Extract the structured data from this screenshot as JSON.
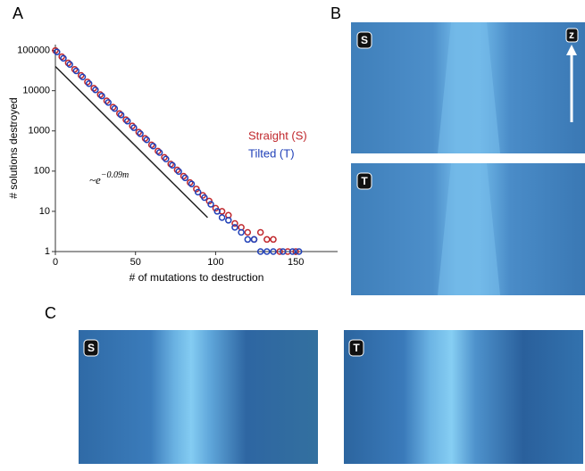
{
  "chart_data": {
    "type": "scatter",
    "xlabel": "# of mutations to destruction",
    "ylabel": "# solutions destroyed",
    "log_y": true,
    "xlim": [
      0,
      175
    ],
    "ylim": [
      1,
      140000
    ],
    "xticks": [
      0,
      50,
      100,
      150
    ],
    "yticks": [
      1,
      10,
      100,
      1000,
      10000,
      100000
    ],
    "series": [
      {
        "name": "Straight (S)",
        "color": "#c0282d",
        "x": [
          0,
          4,
          8,
          12,
          16,
          20,
          24,
          28,
          32,
          36,
          40,
          44,
          48,
          52,
          56,
          60,
          64,
          68,
          72,
          76,
          80,
          84,
          88,
          92,
          96,
          100,
          104,
          108,
          112,
          116,
          120,
          124,
          128,
          132,
          136,
          140,
          145,
          150
        ],
        "values": [
          100000,
          70000,
          49000,
          34000,
          24000,
          16500,
          11500,
          8000,
          5600,
          3900,
          2700,
          1900,
          1330,
          930,
          650,
          450,
          315,
          220,
          150,
          107,
          75,
          52,
          36,
          25,
          18,
          12,
          10,
          8,
          5,
          4,
          3,
          2,
          3,
          2,
          2,
          1,
          1,
          1
        ]
      },
      {
        "name": "Tilted (T)",
        "color": "#2040b8",
        "x": [
          1,
          5,
          9,
          13,
          17,
          21,
          25,
          29,
          33,
          37,
          41,
          45,
          49,
          53,
          57,
          61,
          65,
          69,
          73,
          77,
          81,
          85,
          89,
          93,
          97,
          101,
          104,
          108,
          112,
          116,
          120,
          124,
          128,
          132,
          136,
          142,
          148,
          152
        ],
        "values": [
          92000,
          64000,
          45000,
          31000,
          22000,
          15000,
          10500,
          7400,
          5100,
          3600,
          2500,
          1750,
          1200,
          850,
          600,
          420,
          290,
          200,
          140,
          98,
          68,
          48,
          30,
          22,
          15,
          10,
          7,
          6,
          4,
          3,
          2,
          2,
          1,
          1,
          1,
          1,
          1,
          1
        ]
      }
    ],
    "fit": {
      "x": [
        0,
        95
      ],
      "values": [
        40000,
        7
      ],
      "label": "~e",
      "exponent": "−0.09m"
    }
  },
  "panel_labels": [
    "A",
    "B",
    "C"
  ],
  "image_labels": {
    "b_top": "S",
    "b_bottom": "T",
    "axis": "z",
    "c_left": "S",
    "c_right": "T"
  }
}
